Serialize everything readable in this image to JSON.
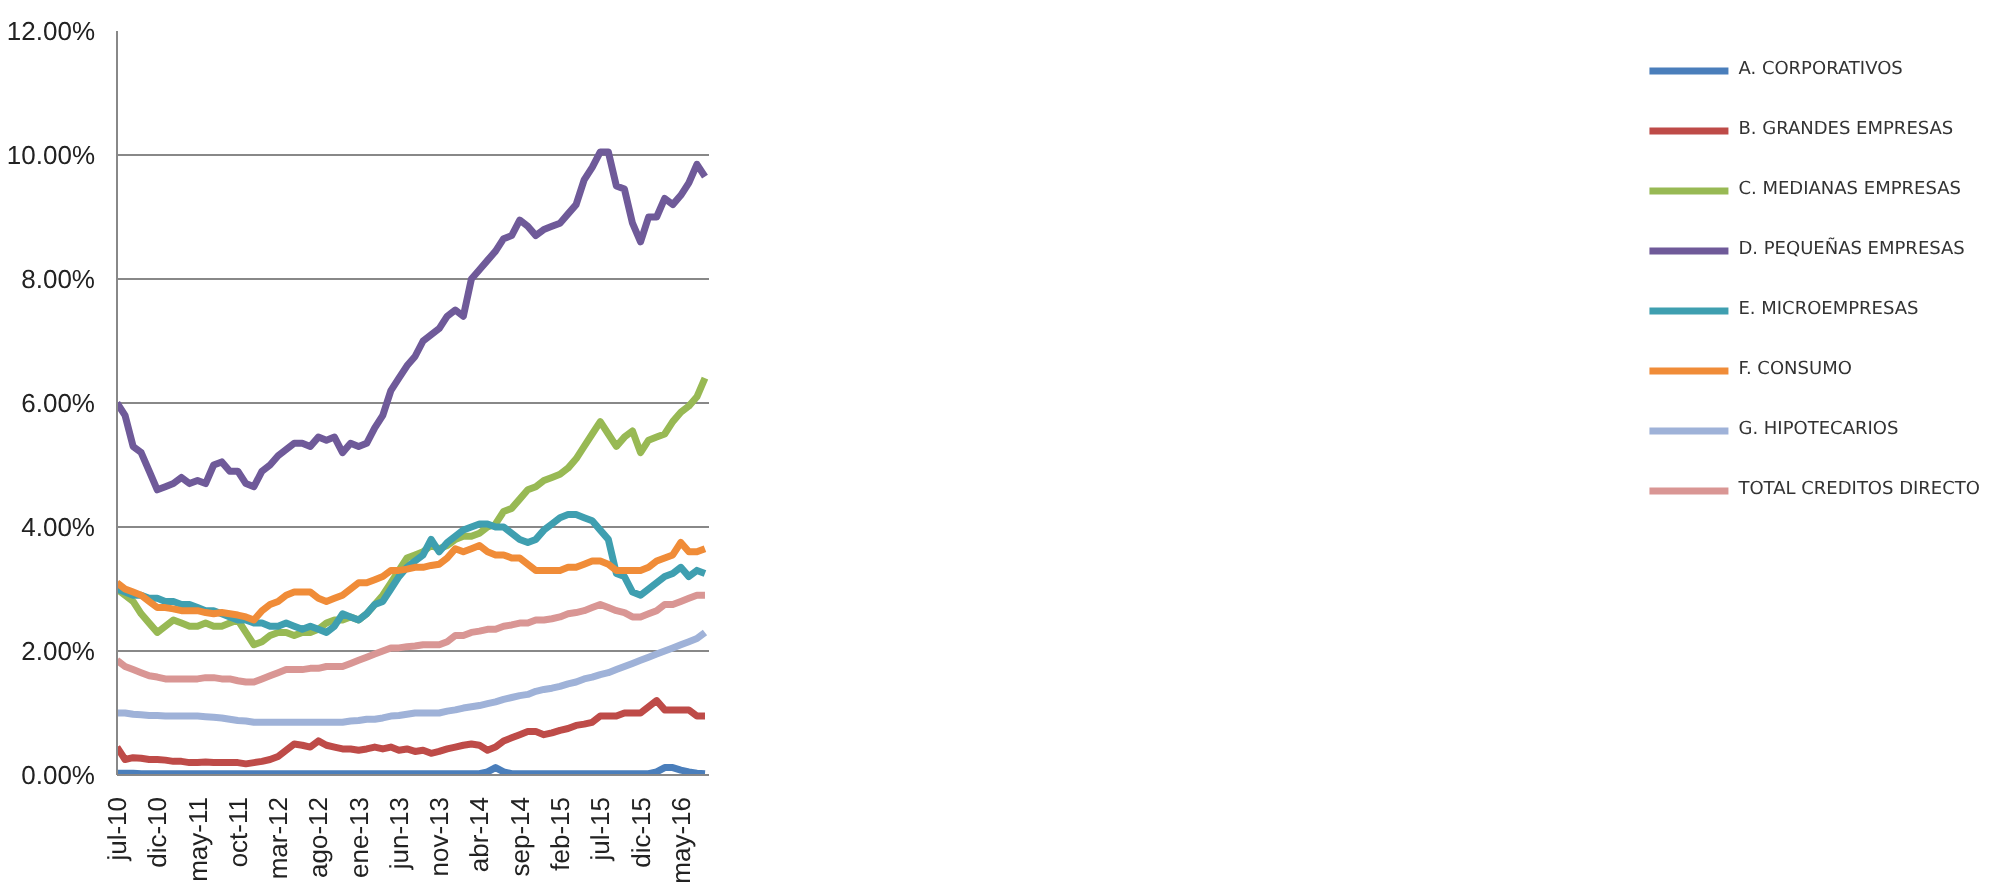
{
  "chart_data": {
    "type": "line",
    "categories": [
      "jul-10",
      null,
      null,
      null,
      null,
      "dic-10",
      null,
      null,
      null,
      null,
      "may-11",
      null,
      null,
      null,
      null,
      "oct-11",
      null,
      null,
      null,
      null,
      "mar-12",
      null,
      null,
      null,
      null,
      "ago-12",
      null,
      null,
      null,
      null,
      "ene-13",
      null,
      null,
      null,
      null,
      "jun-13",
      null,
      null,
      null,
      null,
      "nov-13",
      null,
      null,
      null,
      null,
      "abr-14",
      null,
      null,
      null,
      null,
      "sep-14",
      null,
      null,
      null,
      null,
      "feb-15",
      null,
      null,
      null,
      null,
      "jul-15",
      null,
      null,
      null,
      null,
      "dic-15",
      null,
      null,
      null,
      null,
      "may-16",
      null,
      null,
      null
    ],
    "series": [
      {
        "name": "A. CORPORATIVOS",
        "color": "#4a7ebb",
        "values": [
          0.03,
          0.03,
          0.03,
          0.02,
          0.02,
          0.02,
          0.02,
          0.02,
          0.02,
          0.02,
          0.02,
          0.02,
          0.02,
          0.02,
          0.02,
          0.02,
          0.02,
          0.02,
          0.02,
          0.02,
          0.02,
          0.02,
          0.02,
          0.02,
          0.02,
          0.02,
          0.02,
          0.02,
          0.02,
          0.02,
          0.02,
          0.02,
          0.02,
          0.02,
          0.02,
          0.02,
          0.02,
          0.02,
          0.02,
          0.02,
          0.02,
          0.02,
          0.02,
          0.02,
          0.02,
          0.02,
          0.05,
          0.12,
          0.05,
          0.02,
          0.02,
          0.02,
          0.02,
          0.02,
          0.02,
          0.02,
          0.02,
          0.02,
          0.02,
          0.02,
          0.02,
          0.02,
          0.02,
          0.02,
          0.02,
          0.02,
          0.02,
          0.05,
          0.12,
          0.12,
          0.08,
          0.05,
          0.03,
          0.02
        ]
      },
      {
        "name": "B. GRANDES EMPRESAS",
        "color": "#be4b48",
        "values": [
          0.45,
          0.25,
          0.28,
          0.27,
          0.25,
          0.25,
          0.24,
          0.22,
          0.22,
          0.2,
          0.2,
          0.21,
          0.2,
          0.2,
          0.2,
          0.2,
          0.18,
          0.2,
          0.22,
          0.25,
          0.3,
          0.4,
          0.5,
          0.48,
          0.45,
          0.55,
          0.48,
          0.45,
          0.42,
          0.42,
          0.4,
          0.42,
          0.45,
          0.42,
          0.45,
          0.4,
          0.42,
          0.38,
          0.4,
          0.35,
          0.38,
          0.42,
          0.45,
          0.48,
          0.5,
          0.48,
          0.4,
          0.45,
          0.55,
          0.6,
          0.65,
          0.7,
          0.7,
          0.65,
          0.68,
          0.72,
          0.75,
          0.8,
          0.82,
          0.85,
          0.95,
          0.95,
          0.95,
          1.0,
          1.0,
          1.0,
          1.1,
          1.2,
          1.05,
          1.05,
          1.05,
          1.05,
          0.95,
          0.95
        ]
      },
      {
        "name": "C. MEDIANAS EMPRESAS",
        "color": "#98b954",
        "values": [
          3.0,
          2.9,
          2.8,
          2.6,
          2.45,
          2.3,
          2.4,
          2.5,
          2.45,
          2.4,
          2.4,
          2.45,
          2.4,
          2.4,
          2.45,
          2.5,
          2.3,
          2.1,
          2.15,
          2.25,
          2.3,
          2.3,
          2.25,
          2.3,
          2.3,
          2.35,
          2.45,
          2.5,
          2.5,
          2.55,
          2.5,
          2.6,
          2.75,
          2.9,
          3.1,
          3.3,
          3.5,
          3.55,
          3.6,
          3.7,
          3.65,
          3.7,
          3.8,
          3.85,
          3.85,
          3.9,
          4.0,
          4.05,
          4.25,
          4.3,
          4.45,
          4.6,
          4.65,
          4.75,
          4.8,
          4.85,
          4.95,
          5.1,
          5.3,
          5.5,
          5.7,
          5.5,
          5.3,
          5.45,
          5.55,
          5.2,
          5.4,
          5.45,
          5.5,
          5.7,
          5.85,
          5.95,
          6.1,
          6.4
        ]
      },
      {
        "name": "D. PEQUEÑAS EMPRESAS",
        "color": "#6f5a99",
        "values": [
          6.0,
          5.8,
          5.3,
          5.2,
          4.9,
          4.6,
          4.65,
          4.7,
          4.8,
          4.7,
          4.75,
          4.7,
          5.0,
          5.05,
          4.9,
          4.9,
          4.7,
          4.65,
          4.9,
          5.0,
          5.15,
          5.25,
          5.35,
          5.35,
          5.3,
          5.45,
          5.4,
          5.45,
          5.2,
          5.35,
          5.3,
          5.35,
          5.6,
          5.8,
          6.2,
          6.4,
          6.6,
          6.75,
          7.0,
          7.1,
          7.2,
          7.4,
          7.5,
          7.4,
          8.0,
          8.15,
          8.3,
          8.45,
          8.65,
          8.7,
          8.95,
          8.85,
          8.7,
          8.8,
          8.85,
          8.9,
          9.05,
          9.2,
          9.6,
          9.8,
          10.05,
          10.05,
          9.5,
          9.45,
          8.9,
          8.6,
          9.0,
          9.0,
          9.3,
          9.2,
          9.35,
          9.55,
          9.85,
          9.65
        ]
      },
      {
        "name": "E. MICROEMPRESAS",
        "color": "#3f9fb0",
        "values": [
          3.0,
          2.95,
          2.9,
          2.9,
          2.85,
          2.85,
          2.8,
          2.8,
          2.75,
          2.75,
          2.7,
          2.65,
          2.65,
          2.6,
          2.55,
          2.5,
          2.5,
          2.45,
          2.45,
          2.4,
          2.4,
          2.45,
          2.4,
          2.35,
          2.4,
          2.35,
          2.3,
          2.4,
          2.6,
          2.55,
          2.5,
          2.6,
          2.75,
          2.8,
          3.0,
          3.2,
          3.35,
          3.45,
          3.55,
          3.8,
          3.6,
          3.75,
          3.85,
          3.95,
          4.0,
          4.05,
          4.05,
          4.0,
          4.0,
          3.9,
          3.8,
          3.75,
          3.8,
          3.95,
          4.05,
          4.15,
          4.2,
          4.2,
          4.15,
          4.1,
          3.95,
          3.8,
          3.25,
          3.2,
          2.95,
          2.9,
          3.0,
          3.1,
          3.2,
          3.25,
          3.35,
          3.2,
          3.3,
          3.25
        ]
      },
      {
        "name": "F. CONSUMO",
        "color": "#f08c38",
        "values": [
          3.1,
          3.0,
          2.95,
          2.9,
          2.8,
          2.7,
          2.7,
          2.68,
          2.65,
          2.65,
          2.65,
          2.62,
          2.6,
          2.62,
          2.6,
          2.58,
          2.55,
          2.5,
          2.65,
          2.75,
          2.8,
          2.9,
          2.95,
          2.95,
          2.95,
          2.85,
          2.8,
          2.85,
          2.9,
          3.0,
          3.1,
          3.1,
          3.15,
          3.2,
          3.3,
          3.3,
          3.32,
          3.35,
          3.35,
          3.38,
          3.4,
          3.5,
          3.65,
          3.6,
          3.65,
          3.7,
          3.6,
          3.55,
          3.55,
          3.5,
          3.5,
          3.4,
          3.3,
          3.3,
          3.3,
          3.3,
          3.35,
          3.35,
          3.4,
          3.45,
          3.45,
          3.4,
          3.3,
          3.3,
          3.3,
          3.3,
          3.35,
          3.45,
          3.5,
          3.55,
          3.75,
          3.6,
          3.6,
          3.65
        ]
      },
      {
        "name": "G. HIPOTECARIOS",
        "color": "#9fb2d8",
        "values": [
          1.0,
          1.0,
          0.98,
          0.97,
          0.96,
          0.96,
          0.95,
          0.95,
          0.95,
          0.95,
          0.95,
          0.94,
          0.93,
          0.92,
          0.9,
          0.88,
          0.87,
          0.85,
          0.85,
          0.85,
          0.85,
          0.85,
          0.85,
          0.85,
          0.85,
          0.85,
          0.85,
          0.85,
          0.85,
          0.87,
          0.88,
          0.9,
          0.9,
          0.92,
          0.95,
          0.96,
          0.98,
          1.0,
          1.0,
          1.0,
          1.0,
          1.03,
          1.05,
          1.08,
          1.1,
          1.12,
          1.15,
          1.18,
          1.22,
          1.25,
          1.28,
          1.3,
          1.35,
          1.38,
          1.4,
          1.43,
          1.47,
          1.5,
          1.55,
          1.58,
          1.62,
          1.65,
          1.7,
          1.75,
          1.8,
          1.85,
          1.9,
          1.95,
          2.0,
          2.05,
          2.1,
          2.15,
          2.2,
          2.3
        ]
      },
      {
        "name": "TOTAL CREDITOS DIRECTO",
        "color": "#d99694",
        "values": [
          1.85,
          1.75,
          1.7,
          1.65,
          1.6,
          1.58,
          1.55,
          1.55,
          1.55,
          1.55,
          1.55,
          1.57,
          1.57,
          1.55,
          1.55,
          1.52,
          1.5,
          1.5,
          1.55,
          1.6,
          1.65,
          1.7,
          1.7,
          1.7,
          1.72,
          1.72,
          1.75,
          1.75,
          1.75,
          1.8,
          1.85,
          1.9,
          1.95,
          2.0,
          2.05,
          2.05,
          2.07,
          2.08,
          2.1,
          2.1,
          2.1,
          2.15,
          2.25,
          2.25,
          2.3,
          2.32,
          2.35,
          2.35,
          2.4,
          2.42,
          2.45,
          2.45,
          2.5,
          2.5,
          2.52,
          2.55,
          2.6,
          2.62,
          2.65,
          2.7,
          2.75,
          2.7,
          2.65,
          2.62,
          2.55,
          2.55,
          2.6,
          2.65,
          2.75,
          2.75,
          2.8,
          2.85,
          2.9,
          2.9
        ]
      }
    ],
    "ylim": [
      0,
      12
    ],
    "yticks": [
      {
        "value": 0,
        "label": "0.00%"
      },
      {
        "value": 2,
        "label": "2.00%"
      },
      {
        "value": 4,
        "label": "4.00%"
      },
      {
        "value": 6,
        "label": "6.00%"
      },
      {
        "value": 8,
        "label": "8.00%"
      },
      {
        "value": 10,
        "label": "10.00%"
      },
      {
        "value": 12,
        "label": "12.00%"
      }
    ],
    "grid": "y",
    "legend": "right",
    "marker": "none",
    "line_style": "solid"
  }
}
